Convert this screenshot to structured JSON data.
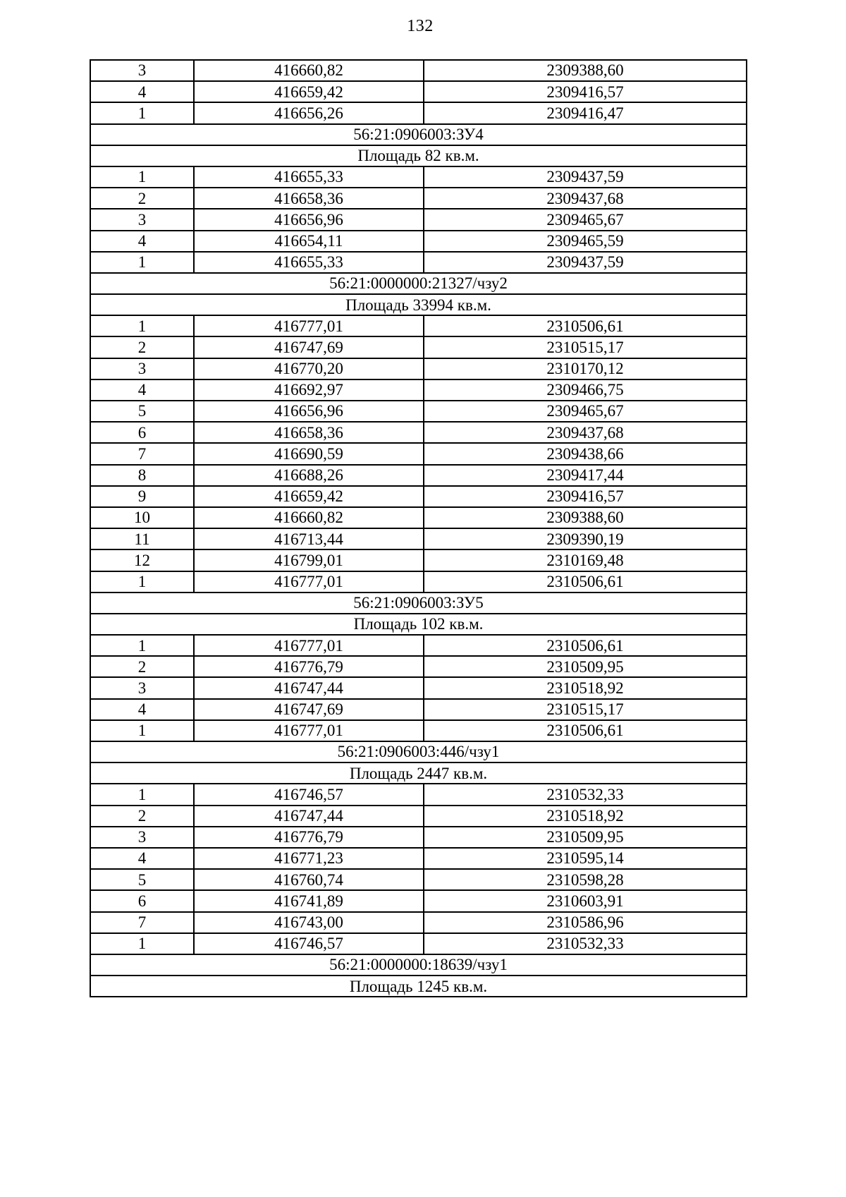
{
  "page": {
    "number": "132"
  },
  "table": {
    "columns": [
      "point-number",
      "coordinate-x",
      "coordinate-y"
    ],
    "sections": [
      {
        "cadastral": null,
        "area": null,
        "points": [
          {
            "n": "3",
            "x": "416660,82",
            "y": "2309388,60"
          },
          {
            "n": "4",
            "x": "416659,42",
            "y": "2309416,57"
          },
          {
            "n": "1",
            "x": "416656,26",
            "y": "2309416,47"
          }
        ]
      },
      {
        "cadastral": "56:21:0906003:ЗУ4",
        "area": "Площадь 82 кв.м.",
        "points": [
          {
            "n": "1",
            "x": "416655,33",
            "y": "2309437,59"
          },
          {
            "n": "2",
            "x": "416658,36",
            "y": "2309437,68"
          },
          {
            "n": "3",
            "x": "416656,96",
            "y": "2309465,67"
          },
          {
            "n": "4",
            "x": "416654,11",
            "y": "2309465,59"
          },
          {
            "n": "1",
            "x": "416655,33",
            "y": "2309437,59"
          }
        ]
      },
      {
        "cadastral": "56:21:0000000:21327/чзу2",
        "area": "Площадь 33994 кв.м.",
        "points": [
          {
            "n": "1",
            "x": "416777,01",
            "y": "2310506,61"
          },
          {
            "n": "2",
            "x": "416747,69",
            "y": "2310515,17"
          },
          {
            "n": "3",
            "x": "416770,20",
            "y": "2310170,12"
          },
          {
            "n": "4",
            "x": "416692,97",
            "y": "2309466,75"
          },
          {
            "n": "5",
            "x": "416656,96",
            "y": "2309465,67"
          },
          {
            "n": "6",
            "x": "416658,36",
            "y": "2309437,68"
          },
          {
            "n": "7",
            "x": "416690,59",
            "y": "2309438,66"
          },
          {
            "n": "8",
            "x": "416688,26",
            "y": "2309417,44"
          },
          {
            "n": "9",
            "x": "416659,42",
            "y": "2309416,57"
          },
          {
            "n": "10",
            "x": "416660,82",
            "y": "2309388,60"
          },
          {
            "n": "11",
            "x": "416713,44",
            "y": "2309390,19"
          },
          {
            "n": "12",
            "x": "416799,01",
            "y": "2310169,48"
          },
          {
            "n": "1",
            "x": "416777,01",
            "y": "2310506,61"
          }
        ]
      },
      {
        "cadastral": "56:21:0906003:ЗУ5",
        "area": "Площадь 102 кв.м.",
        "points": [
          {
            "n": "1",
            "x": "416777,01",
            "y": "2310506,61"
          },
          {
            "n": "2",
            "x": "416776,79",
            "y": "2310509,95"
          },
          {
            "n": "3",
            "x": "416747,44",
            "y": "2310518,92"
          },
          {
            "n": "4",
            "x": "416747,69",
            "y": "2310515,17"
          },
          {
            "n": "1",
            "x": "416777,01",
            "y": "2310506,61"
          }
        ]
      },
      {
        "cadastral": "56:21:0906003:446/чзу1",
        "area": "Площадь 2447 кв.м.",
        "points": [
          {
            "n": "1",
            "x": "416746,57",
            "y": "2310532,33"
          },
          {
            "n": "2",
            "x": "416747,44",
            "y": "2310518,92"
          },
          {
            "n": "3",
            "x": "416776,79",
            "y": "2310509,95"
          },
          {
            "n": "4",
            "x": "416771,23",
            "y": "2310595,14"
          },
          {
            "n": "5",
            "x": "416760,74",
            "y": "2310598,28"
          },
          {
            "n": "6",
            "x": "416741,89",
            "y": "2310603,91"
          },
          {
            "n": "7",
            "x": "416743,00",
            "y": "2310586,96"
          },
          {
            "n": "1",
            "x": "416746,57",
            "y": "2310532,33"
          }
        ]
      },
      {
        "cadastral": "56:21:0000000:18639/чзу1",
        "area": "Площадь 1245 кв.м.",
        "points": []
      }
    ],
    "colors": {
      "border": "#000000",
      "text": "#000000",
      "background": "#ffffff"
    }
  }
}
